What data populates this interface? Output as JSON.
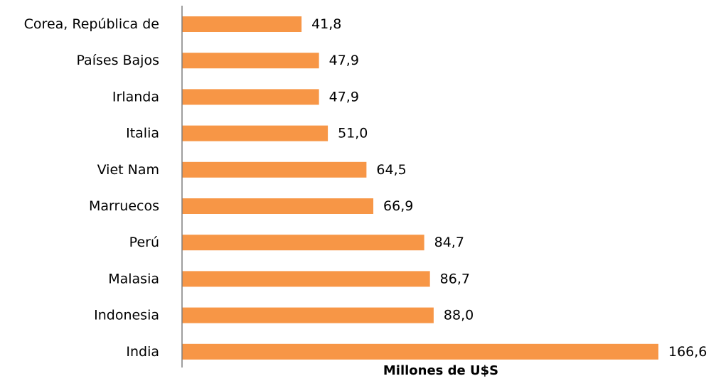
{
  "chart_data": {
    "type": "bar",
    "orientation": "horizontal",
    "categories": [
      "Corea, República de",
      "Países Bajos",
      "Irlanda",
      "Italia",
      "Viet Nam",
      "Marruecos",
      "Perú",
      "Malasia",
      "Indonesia",
      "India"
    ],
    "values": [
      41.8,
      47.9,
      47.9,
      51.0,
      64.5,
      66.9,
      84.7,
      86.7,
      88.0,
      166.6
    ],
    "value_labels": [
      "41,8",
      "47,9",
      "47,9",
      "51,0",
      "64,5",
      "66,9",
      "84,7",
      "86,7",
      "88,0",
      "166,6"
    ],
    "xlabel": "Millones de U$S",
    "xlim": [
      0,
      166.6
    ],
    "grid": false,
    "bar_color": "#F79646",
    "axis_color": "#7F7F7F"
  }
}
